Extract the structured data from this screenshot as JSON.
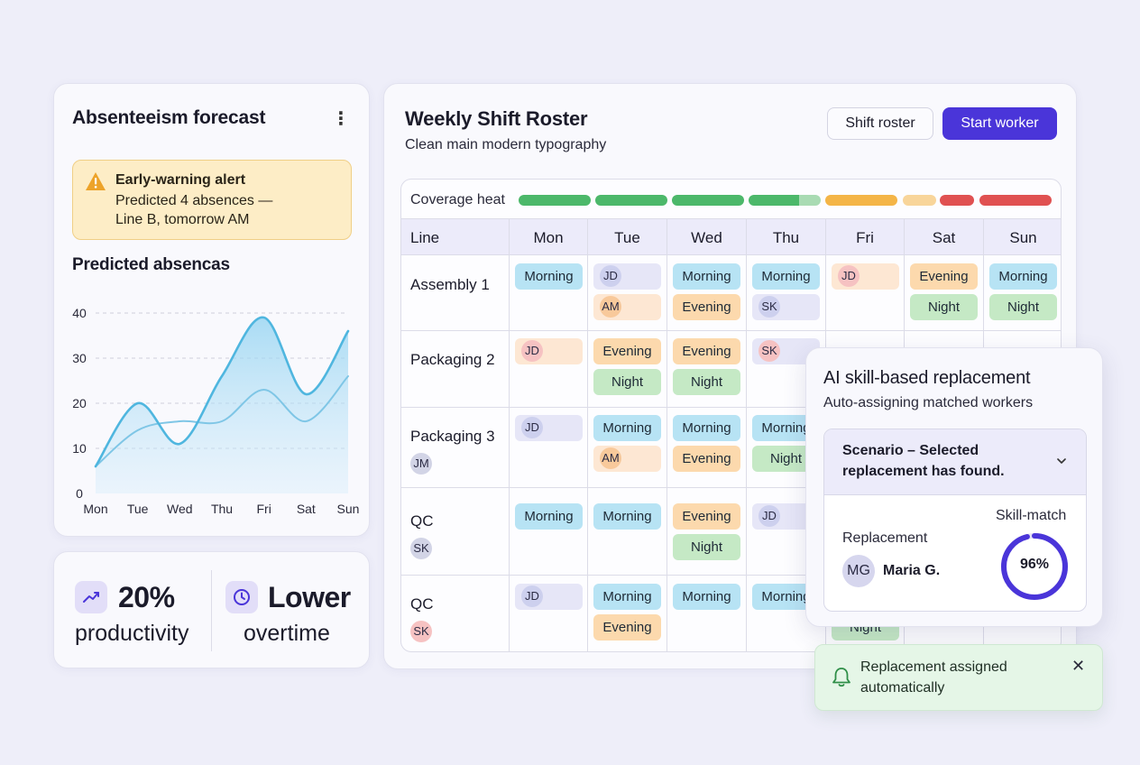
{
  "forecast": {
    "title": "Absenteeism forecast",
    "menu_icon": "more-vertical-icon",
    "alert": {
      "icon": "warning-icon",
      "title": "Early-warning alert",
      "line1": "Predicted 4 absences —",
      "line2": "Line B, tomorrow AM"
    },
    "chart_title": "Predicted absencas"
  },
  "chart_data": {
    "type": "area",
    "title": "Predicted absencas",
    "categories": [
      "Mon",
      "Tue",
      "Wed",
      "Thu",
      "Fri",
      "Sat",
      "Sun"
    ],
    "y_ticks": [
      "0",
      "10",
      "20",
      "30",
      "40"
    ],
    "ylim": [
      0,
      40
    ],
    "grid": true,
    "series": [
      {
        "values": [
          6,
          20,
          11,
          26,
          39,
          22,
          36
        ],
        "color": "#4fb6df"
      },
      {
        "values": [
          6,
          14,
          16,
          16,
          23,
          16,
          26
        ],
        "color": "#7fc6e6"
      }
    ]
  },
  "stats": {
    "productivity": {
      "icon": "trending-up-icon",
      "value": "20%",
      "label": "productivity"
    },
    "overtime": {
      "icon": "clock-icon",
      "value": "Lower",
      "label": "overtime"
    }
  },
  "roster": {
    "title": "Weekly Shift Roster",
    "subtitle": "Clean main modern typography",
    "shift_roster_button": "Shift roster",
    "start_worker_button": "Start worker",
    "coverage_label": "Coverage heat",
    "coverage_colors": [
      "#4cb86a",
      "#4cb86a",
      "#4cb86a",
      "#4cb86a",
      "#a9dbb3",
      "#f4b547",
      "#f8d59a",
      "#e05151",
      "#e05151"
    ],
    "columns": [
      "Line",
      "Mon",
      "Tue",
      "Wed",
      "Thu",
      "Fri",
      "Sat",
      "Sun"
    ],
    "rows": [
      {
        "name": "Assembly 1",
        "avatar": ""
      },
      {
        "name": "Packaging 2",
        "avatar": ""
      },
      {
        "name": "Packaging 3",
        "avatar": "JM"
      },
      {
        "name": "QC",
        "avatar": "SK"
      },
      {
        "name": "QC",
        "avatar": "SK"
      }
    ],
    "shift_labels": {
      "morning": "Morning",
      "evening": "Evening",
      "night": "Night"
    },
    "initials": {
      "jd": "JD",
      "am": "AM",
      "sk": "SK"
    }
  },
  "ai": {
    "title": "AI skill-based replacement",
    "subtitle": "Auto-assigning matched workers",
    "scenario_line1": "Scenario – Selected",
    "scenario_line2": "replacement has found.",
    "replacement_label": "Replacement",
    "replacement_initials": "MG",
    "replacement_name": "Maria G.",
    "skill_match_label": "Skill-match",
    "skill_match_value": "96%",
    "skill_match_fraction": 0.96,
    "partial_pill": "Night"
  },
  "toast": {
    "icon": "bell-icon",
    "line1": "Replacement assigned",
    "line2": "automatically",
    "close_icon": "close-icon"
  }
}
